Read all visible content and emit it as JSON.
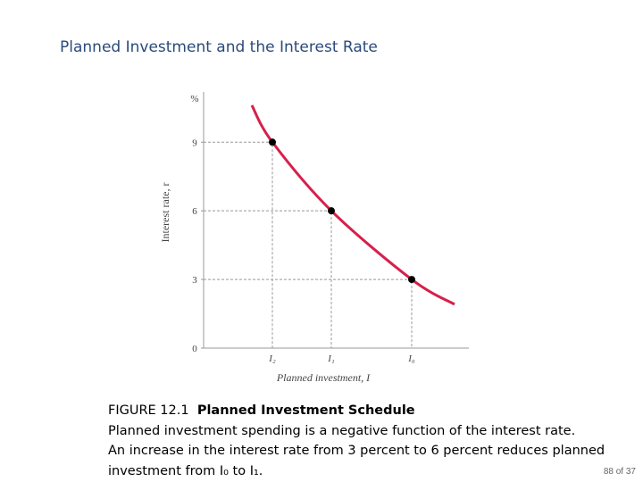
{
  "title": "Planned Investment and the Interest Rate",
  "chart_data": {
    "type": "scatter",
    "categories": [
      "I₂",
      "I₁",
      "I₀"
    ],
    "values": [
      9,
      6,
      3
    ],
    "color": "#000000",
    "curve_color": "#d6204a",
    "ylim": [
      0,
      11
    ],
    "yticks": [
      0,
      3,
      6,
      9
    ],
    "y_unit_label": "%",
    "y_label": "Interest rate, r",
    "x_label": "Planned investment, I"
  },
  "caption": {
    "figure": "FIGURE 12.1",
    "heading": "Planned Investment Schedule",
    "lines": [
      "Planned investment spending is a negative function of the interest rate.",
      "An increase in the interest rate from 3 percent to 6 percent reduces planned",
      "investment from I₀ to I₁."
    ]
  },
  "page_number": "88 of 37"
}
